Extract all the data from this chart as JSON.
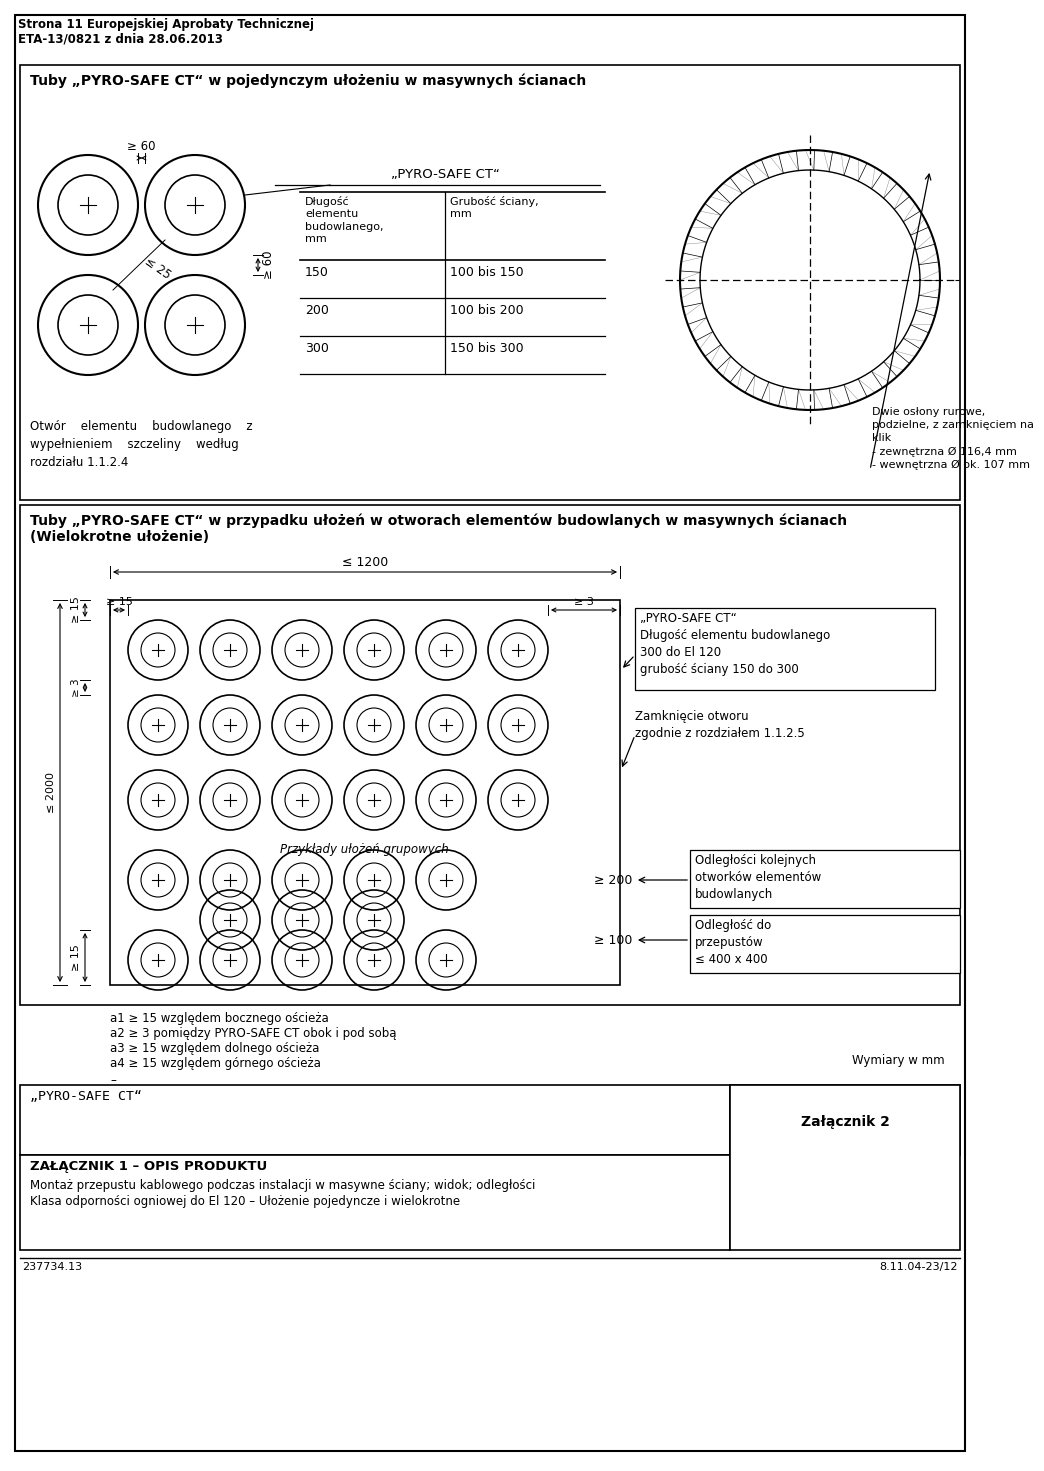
{
  "header_line1": "Strona 11 Europejskiej Aprobaty Technicznej",
  "header_line2": "ETA-13/0821 z dnia 28.06.2013",
  "title_top": "Tuby „PYRO-SAFE CT“ w pojedynczym ułożeniu w masywnych ścianach",
  "pyro_label": "„PYRO-SAFE CT“",
  "table_col1_hdr": "Długość\nelementu\nbudowlanego,\nmm",
  "table_col2_hdr": "Grubość ściany,\nmm",
  "table_data": [
    [
      "150",
      "100 bis 150"
    ],
    [
      "200",
      "100 bis 200"
    ],
    [
      "300",
      "150 bis 300"
    ]
  ],
  "dim_ge60_h": "≥ 60",
  "dim_le25": "≤ 25",
  "dim_ge60_v": "≥ 60",
  "circle_note": "Dwie osłony rurowe,\npodzielne, z zamknięciem na\nklik\n- zewnętrzna Ø 116,4 mm\n- wewnętrzna Ø ok. 107 mm",
  "otwor_text": "Otwór    elementu    budowlanego    z\nwypełnieniem    szczeliny    według\nrozdziału 1.1.2.4",
  "title_mid1": "Tuby „PYRO-SAFE CT“ w przypadku ułożeń w otworach elementów budowlanych w masywnych ścianach",
  "title_mid2": "(Wielokrotne ułożenie)",
  "dim_le1200": "≤ 1200",
  "dim_ge15_hl": "≥ 15",
  "dim_ge3_hr": "≥ 3",
  "dim_ge15_vt": "≥ 15",
  "dim_ge3_vt2": "≥ 3",
  "dim_le2000": "≤ 2000",
  "dim_ge15_vb": "≥ 15",
  "pyro_box": "„PYRO-SAFE CT“\nDługość elementu budowlanego\n300 do El 120\ngrubość ściany 150 do 300",
  "zamkniecie": "Zamknięcie otworu\nzgodnie z rozdziałem 1.1.2.5",
  "przyklady": "Przykłady ułożeń grupowych",
  "ge200": "≥ 200",
  "ge100": "≥ 100",
  "odl_kolejnych": "Odległości kolejnych\notworków elementów\nbudowlanych",
  "odl_przepustow": "Odległość do\nprzepustów\n≤ 400 x 400",
  "a1": "a1 ≥ 15 względem bocznego ościeża",
  "a2": "a2 ≥ 3 pomiędzy PYRO-SAFE CT obok i pod sobą",
  "a3": "a3 ≥ 15 względem dolnego ościeża",
  "a4": "a4 ≥ 15 względem górnego ościeża",
  "dash": "–",
  "wymiary": "Wymiary w mm",
  "pyro_bottom": "„PYRO-SAFE CT“",
  "zalacznik2": "Załącznik 2",
  "zal1_title": "ZAŁĄCZNIK 1 – OPIS PRODUKTU",
  "zal1_line1": "Montaż przepustu kablowego podczas instalacji w masywne ściany; widok; odległości",
  "zal1_line2": "Klasa odporności ogniowej do El 120 – Ułożenie pojedyncze i wielokrotne",
  "footer_l": "237734.13",
  "footer_r": "8.11.04-23/12"
}
